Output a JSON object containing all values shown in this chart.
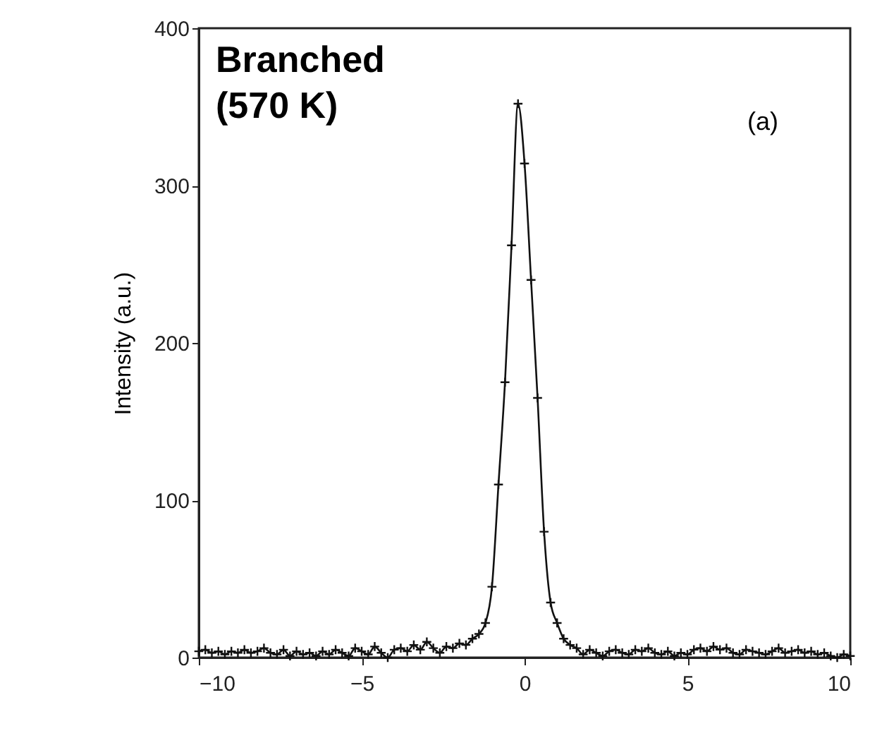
{
  "chart_data": {
    "type": "line",
    "ylabel": "Intensity (a.u.)",
    "annotations": [
      "Branched\n(570 K)",
      "(a)"
    ],
    "x": [
      -10,
      -9.8,
      -9.6,
      -9.4,
      -9.2,
      -9,
      -8.8,
      -8.6,
      -8.4,
      -8.2,
      -8,
      -7.8,
      -7.6,
      -7.4,
      -7.2,
      -7,
      -6.8,
      -6.6,
      -6.4,
      -6.2,
      -6,
      -5.8,
      -5.6,
      -5.4,
      -5.2,
      -5,
      -4.8,
      -4.6,
      -4.4,
      -4.2,
      -4,
      -3.8,
      -3.6,
      -3.4,
      -3.2,
      -3,
      -2.8,
      -2.6,
      -2.4,
      -2.2,
      -2,
      -1.8,
      -1.6,
      -1.4,
      -1.2,
      -1,
      -0.8,
      -0.6,
      -0.4,
      -0.2,
      0,
      0.2,
      0.4,
      0.6,
      0.8,
      1,
      1.2,
      1.4,
      1.6,
      1.8,
      2,
      2.2,
      2.4,
      2.6,
      2.8,
      3,
      3.2,
      3.4,
      3.6,
      3.8,
      4,
      4.2,
      4.4,
      4.6,
      4.8,
      5,
      5.2,
      5.4,
      5.6,
      5.8,
      6,
      6.2,
      6.4,
      6.6,
      6.8,
      7,
      7.2,
      7.4,
      7.6,
      7.8,
      8,
      8.2,
      8.4,
      8.6,
      8.8,
      9,
      9.2,
      9.4,
      9.6,
      9.8,
      10
    ],
    "series": [
      {
        "color": "#111111",
        "values": [
          4,
          5,
          3,
          4,
          2,
          4,
          3,
          5,
          3,
          4,
          6,
          3,
          2,
          5,
          1,
          4,
          2,
          3,
          1,
          4,
          2,
          5,
          3,
          1,
          6,
          4,
          2,
          7,
          3,
          0,
          5,
          6,
          4,
          8,
          5,
          10,
          6,
          3,
          7,
          6,
          9,
          8,
          12,
          15,
          22,
          45,
          110,
          175,
          262,
          352,
          314,
          240,
          165,
          80,
          35,
          22,
          12,
          8,
          6,
          2,
          5,
          3,
          1,
          4,
          5,
          3,
          2,
          5,
          4,
          6,
          3,
          2,
          4,
          1,
          3,
          2,
          5,
          6,
          4,
          7,
          5,
          6,
          3,
          2,
          5,
          4,
          3,
          2,
          4,
          6,
          3,
          4,
          5,
          3,
          4,
          2,
          3,
          1,
          0,
          2,
          1
        ]
      }
    ],
    "xlim": [
      -10,
      10
    ],
    "ylim": [
      0,
      400
    ],
    "xticks": [
      -10,
      -5,
      0,
      5,
      10
    ],
    "yticks": [
      0,
      100,
      200,
      300,
      400
    ],
    "grid": false,
    "marker": "cross",
    "line_style": "solid"
  }
}
